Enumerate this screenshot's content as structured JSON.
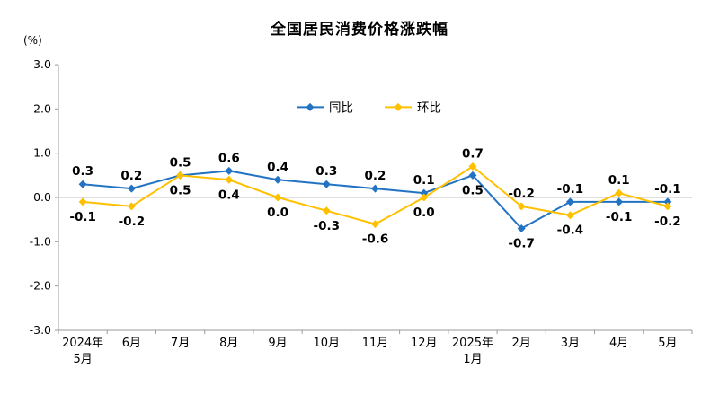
{
  "chart_data": {
    "type": "line",
    "title": "全国居民消费价格涨跌幅",
    "ylabel": "(%)",
    "xlabel": "",
    "ylim": [
      -3.0,
      3.0
    ],
    "yticks": [
      "3.0",
      "2.0",
      "1.0",
      "0.0",
      "-1.0",
      "-2.0",
      "-3.0"
    ],
    "grid": false,
    "legend_position": "top-center-inside",
    "categories": [
      "2024年|5月",
      "6月",
      "7月",
      "8月",
      "9月",
      "10月",
      "11月",
      "12月",
      "2025年|1月",
      "2月",
      "3月",
      "4月",
      "5月"
    ],
    "series": [
      {
        "name": "同比",
        "color": "#2273c3",
        "marker": "diamond",
        "values": [
          0.3,
          0.2,
          0.5,
          0.6,
          0.4,
          0.3,
          0.2,
          0.1,
          0.5,
          -0.7,
          -0.1,
          -0.1,
          -0.1
        ],
        "label_pos": [
          "above",
          "above",
          "above",
          "above",
          "above",
          "above",
          "above",
          "above",
          "below",
          "below",
          "above",
          "below",
          "above"
        ]
      },
      {
        "name": "环比",
        "color": "#ffc000",
        "marker": "diamond",
        "values": [
          -0.1,
          -0.2,
          0.5,
          0.4,
          0.0,
          -0.3,
          -0.6,
          0.0,
          0.7,
          -0.2,
          -0.4,
          0.1,
          -0.2
        ],
        "label_pos": [
          "below",
          "below",
          "below",
          "below",
          "below",
          "below",
          "below",
          "below",
          "above",
          "above",
          "below",
          "above",
          "below"
        ]
      }
    ],
    "axis_color": "#9a9a9a",
    "zero_line_color": "#bfbfbf",
    "label_color": "#000000"
  }
}
